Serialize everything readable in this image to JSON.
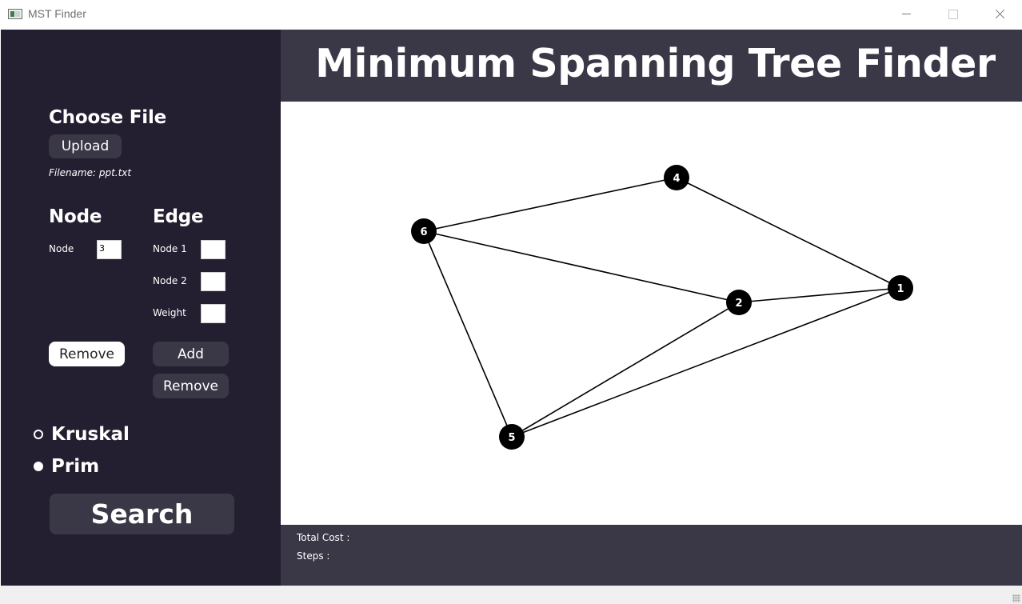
{
  "window": {
    "title": "MST Finder"
  },
  "sidebar": {
    "choose_file_heading": "Choose File",
    "upload_button": "Upload",
    "filename": "Filename: ppt.txt",
    "node_heading": "Node",
    "edge_heading": "Edge",
    "node_label": "Node",
    "node_value": "3",
    "edge_node1_label": "Node 1",
    "edge_node1_value": "",
    "edge_node2_label": "Node 2",
    "edge_node2_value": "",
    "edge_weight_label": "Weight",
    "edge_weight_value": "",
    "node_remove_button": "Remove",
    "edge_add_button": "Add",
    "edge_remove_button": "Remove",
    "algorithms": [
      {
        "label": "Kruskal",
        "checked": false
      },
      {
        "label": "Prim",
        "checked": true
      }
    ],
    "search_button": "Search"
  },
  "header": {
    "title": "Minimum Spanning Tree Finder"
  },
  "graph": {
    "nodes": [
      {
        "id": "1",
        "label": "1"
      },
      {
        "id": "2",
        "label": "2"
      },
      {
        "id": "4",
        "label": "4"
      },
      {
        "id": "5",
        "label": "5"
      },
      {
        "id": "6",
        "label": "6"
      }
    ],
    "edges": [
      [
        "6",
        "4"
      ],
      [
        "4",
        "1"
      ],
      [
        "6",
        "2"
      ],
      [
        "2",
        "1"
      ],
      [
        "6",
        "5"
      ],
      [
        "5",
        "2"
      ],
      [
        "5",
        "1"
      ]
    ]
  },
  "footer": {
    "total_cost_label": "Total Cost :",
    "steps_label": "Steps :"
  },
  "colors": {
    "sidebar_bg": "#231f30",
    "panel_bg": "#3a3747",
    "node_fill": "#000000"
  }
}
